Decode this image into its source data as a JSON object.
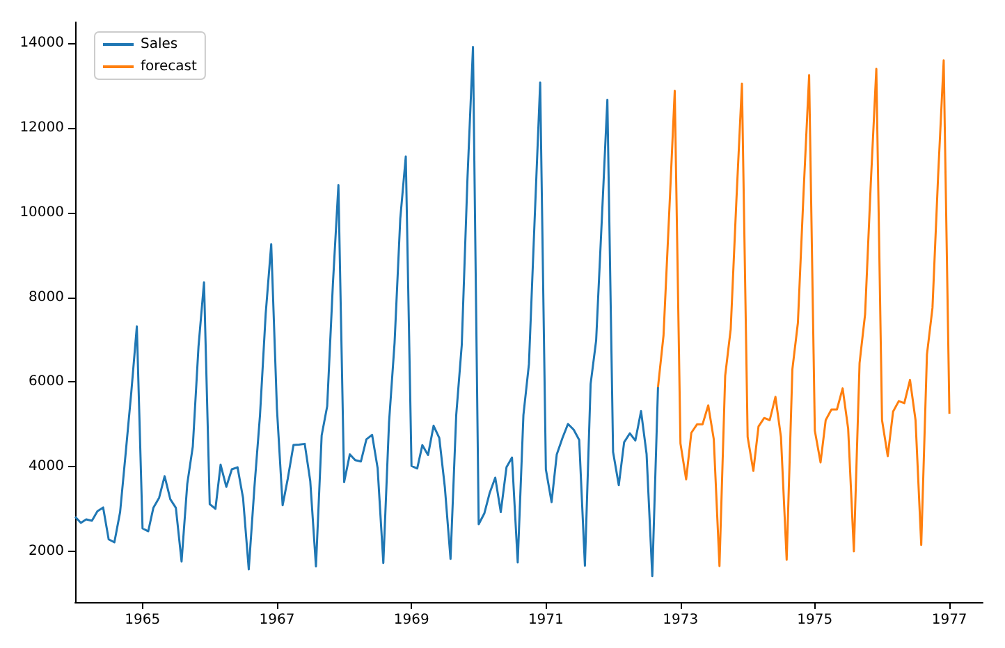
{
  "chart_data": {
    "type": "line",
    "xlim": [
      "1964-01",
      "1977-07"
    ],
    "ylim": [
      800,
      14500
    ],
    "xticks": [
      "1965",
      "1967",
      "1969",
      "1971",
      "1973",
      "1975",
      "1977"
    ],
    "yticks": [
      2000,
      4000,
      6000,
      8000,
      10000,
      12000,
      14000
    ],
    "grid": false,
    "legend": "top left",
    "marker": "none",
    "line_style": "solid",
    "series": [
      {
        "name": "Sales",
        "color": "#1f77b4",
        "x": [
          "1964-01",
          "1964-02",
          "1964-03",
          "1964-04",
          "1964-05",
          "1964-06",
          "1964-07",
          "1964-08",
          "1964-09",
          "1964-10",
          "1964-11",
          "1964-12",
          "1965-01",
          "1965-02",
          "1965-03",
          "1965-04",
          "1965-05",
          "1965-06",
          "1965-07",
          "1965-08",
          "1965-09",
          "1965-10",
          "1965-11",
          "1965-12",
          "1966-01",
          "1966-02",
          "1966-03",
          "1966-04",
          "1966-05",
          "1966-06",
          "1966-07",
          "1966-08",
          "1966-09",
          "1966-10",
          "1966-11",
          "1966-12",
          "1967-01",
          "1967-02",
          "1967-03",
          "1967-04",
          "1967-05",
          "1967-06",
          "1967-07",
          "1967-08",
          "1967-09",
          "1967-10",
          "1967-11",
          "1967-12",
          "1968-01",
          "1968-02",
          "1968-03",
          "1968-04",
          "1968-05",
          "1968-06",
          "1968-07",
          "1968-08",
          "1968-09",
          "1968-10",
          "1968-11",
          "1968-12",
          "1969-01",
          "1969-02",
          "1969-03",
          "1969-04",
          "1969-05",
          "1969-06",
          "1969-07",
          "1969-08",
          "1969-09",
          "1969-10",
          "1969-11",
          "1969-12",
          "1970-01",
          "1970-02",
          "1970-03",
          "1970-04",
          "1970-05",
          "1970-06",
          "1970-07",
          "1970-08",
          "1970-09",
          "1970-10",
          "1970-11",
          "1970-12",
          "1971-01",
          "1971-02",
          "1971-03",
          "1971-04",
          "1971-05",
          "1971-06",
          "1971-07",
          "1971-08",
          "1971-09",
          "1971-10",
          "1971-11",
          "1971-12",
          "1972-01",
          "1972-02",
          "1972-03",
          "1972-04",
          "1972-05",
          "1972-06",
          "1972-07",
          "1972-08",
          "1972-09"
        ],
        "values": [
          2815,
          2672,
          2755,
          2721,
          2946,
          3036,
          2282,
          2212,
          2922,
          4301,
          5764,
          7312,
          2541,
          2475,
          3031,
          3266,
          3776,
          3230,
          3028,
          1759,
          3595,
          4474,
          6838,
          8357,
          3113,
          3006,
          4047,
          3523,
          3937,
          3986,
          3260,
          1573,
          3528,
          5211,
          7614,
          9254,
          5375,
          3088,
          3718,
          4514,
          4520,
          4539,
          3663,
          1643,
          4739,
          5428,
          8314,
          10651,
          3633,
          4292,
          4154,
          4121,
          4647,
          4753,
          3965,
          1723,
          5048,
          6922,
          9858,
          11331,
          4016,
          3957,
          4510,
          4276,
          4968,
          4677,
          3523,
          1821,
          5222,
          6872,
          10803,
          13916,
          2639,
          2899,
          3370,
          3740,
          2927,
          3986,
          4217,
          1738,
          5221,
          6424,
          9842,
          13076,
          3934,
          3162,
          4286,
          4676,
          5010,
          4874,
          4633,
          1659,
          5951,
          6981,
          9851,
          12670,
          4348,
          3564,
          4577,
          4788,
          4618,
          5312,
          4298,
          1413,
          5877
        ]
      },
      {
        "name": "forecast",
        "color": "#ff7f0e",
        "x": [
          "1972-09",
          "1972-10",
          "1972-11",
          "1972-12",
          "1973-01",
          "1973-02",
          "1973-03",
          "1973-04",
          "1973-05",
          "1973-06",
          "1973-07",
          "1973-08",
          "1973-09",
          "1973-10",
          "1973-11",
          "1973-12",
          "1974-01",
          "1974-02",
          "1974-03",
          "1974-04",
          "1974-05",
          "1974-06",
          "1974-07",
          "1974-08",
          "1974-09",
          "1974-10",
          "1974-11",
          "1974-12",
          "1975-01",
          "1975-02",
          "1975-03",
          "1975-04",
          "1975-05",
          "1975-06",
          "1975-07",
          "1975-08",
          "1975-09",
          "1975-10",
          "1975-11",
          "1975-12",
          "1976-01",
          "1976-02",
          "1976-03",
          "1976-04",
          "1976-05",
          "1976-06",
          "1976-07",
          "1976-08",
          "1976-09",
          "1976-10",
          "1976-11",
          "1976-12",
          "1977-01"
        ],
        "values": [
          5877,
          7100,
          10000,
          12880,
          4550,
          3700,
          4800,
          5000,
          5000,
          5450,
          4650,
          1650,
          6150,
          7250,
          10300,
          13050,
          4700,
          3900,
          4950,
          5150,
          5100,
          5650,
          4700,
          1800,
          6300,
          7400,
          10500,
          13250,
          4850,
          4100,
          5100,
          5350,
          5350,
          5850,
          4900,
          2000,
          6450,
          7600,
          10700,
          13400,
          5100,
          4250,
          5300,
          5550,
          5500,
          6050,
          5100,
          2150,
          6650,
          7750,
          10900,
          13600,
          5250
        ]
      }
    ]
  }
}
